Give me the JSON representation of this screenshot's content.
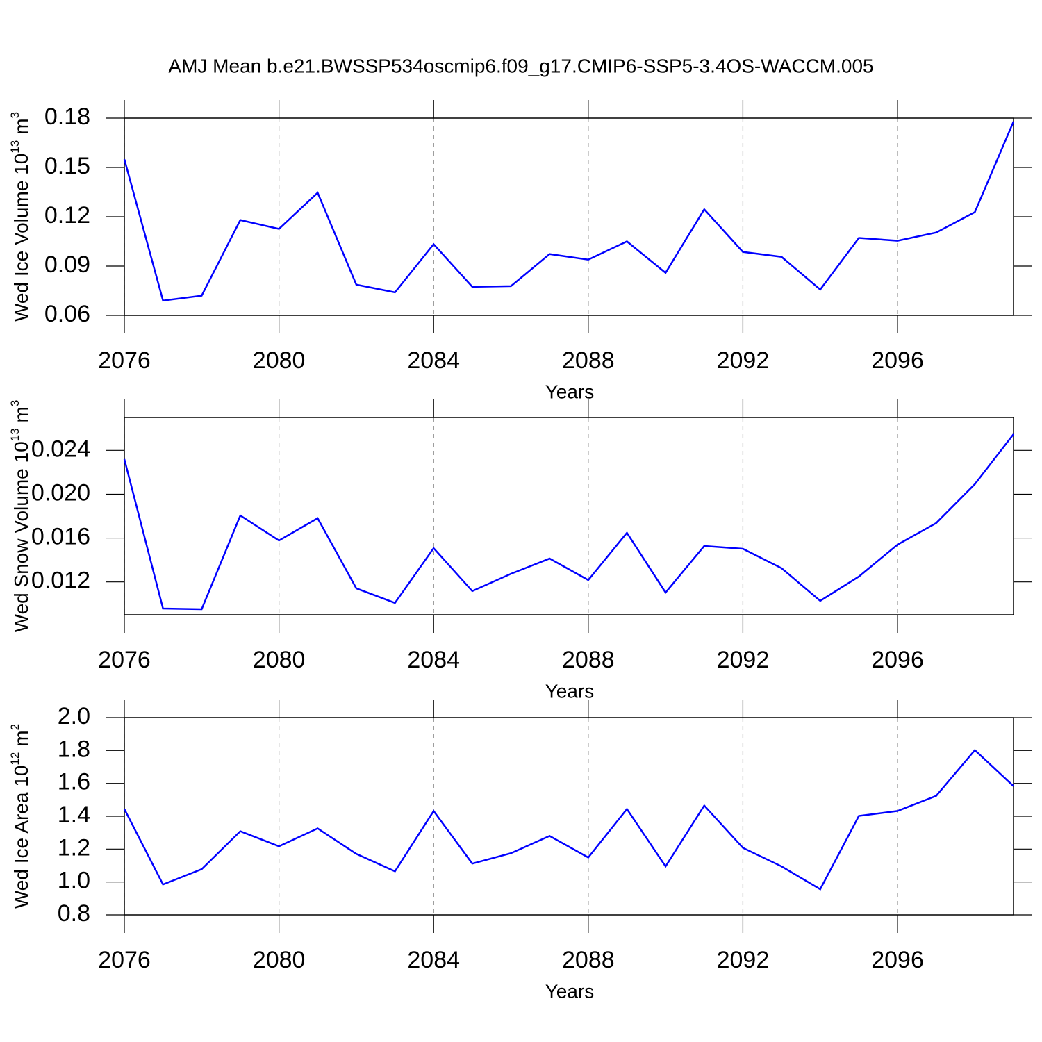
{
  "title": "AMJ Mean b.e21.BWSSP534oscmip6.f09_g17.CMIP6-SSP5-3.4OS-WACCM.005",
  "chart_data": [
    {
      "type": "line",
      "xlabel": "Years",
      "ylabel": [
        "Wed Ice Volume 10",
        "13",
        "m",
        "3"
      ],
      "x": [
        2076,
        2077,
        2078,
        2079,
        2080,
        2081,
        2082,
        2083,
        2084,
        2085,
        2086,
        2087,
        2088,
        2089,
        2090,
        2091,
        2092,
        2093,
        2094,
        2095,
        2096,
        2097,
        2098,
        2099
      ],
      "series": [
        {
          "color": "#0000ff",
          "values": [
            0.155,
            0.069,
            0.072,
            0.118,
            0.1126,
            0.1346,
            0.0787,
            0.074,
            0.1033,
            0.0774,
            0.0778,
            0.0973,
            0.0939,
            0.105,
            0.0859,
            0.1245,
            0.0986,
            0.0956,
            0.0757,
            0.1071,
            0.1054,
            0.1104,
            0.1228,
            0.1779
          ]
        }
      ],
      "xlim": [
        2076,
        2099
      ],
      "xticks": [
        2076,
        2080,
        2084,
        2088,
        2092,
        2096
      ],
      "ylim": [
        0.06,
        0.18
      ],
      "yticks": [
        0.06,
        0.09,
        0.12,
        0.15,
        0.18
      ],
      "grid": true
    },
    {
      "type": "line",
      "xlabel": "Years",
      "ylabel": [
        "Wed Snow Volume 10",
        "13",
        "m",
        "3"
      ],
      "x": [
        2076,
        2077,
        2078,
        2079,
        2080,
        2081,
        2082,
        2083,
        2084,
        2085,
        2086,
        2087,
        2088,
        2089,
        2090,
        2091,
        2092,
        2093,
        2094,
        2095,
        2096,
        2097,
        2098,
        2099
      ],
      "series": [
        {
          "color": "#0000ff",
          "values": [
            0.0232,
            0.00957,
            0.00951,
            0.01806,
            0.01578,
            0.01781,
            0.01141,
            0.01008,
            0.01508,
            0.01116,
            0.01274,
            0.01413,
            0.01217,
            0.01648,
            0.01103,
            0.01528,
            0.01502,
            0.01325,
            0.01027,
            0.01249,
            0.0154,
            0.01737,
            0.02092,
            0.02548
          ]
        }
      ],
      "xlim": [
        2076,
        2099
      ],
      "xticks": [
        2076,
        2080,
        2084,
        2088,
        2092,
        2096
      ],
      "ylim": [
        0.009,
        0.027
      ],
      "yticks": [
        0.012,
        0.016,
        {
          "value": 0.02,
          "label": "0.020"
        },
        0.024
      ],
      "grid": true
    },
    {
      "type": "line",
      "xlabel": "Years",
      "ylabel": [
        "Wed Ice Area 10",
        "12",
        "m",
        "2"
      ],
      "x": [
        2076,
        2077,
        2078,
        2079,
        2080,
        2081,
        2082,
        2083,
        2084,
        2085,
        2086,
        2087,
        2088,
        2089,
        2090,
        2091,
        2092,
        2093,
        2094,
        2095,
        2096,
        2097,
        2098,
        2099
      ],
      "series": [
        {
          "color": "#0000ff",
          "values": [
            1.444,
            0.985,
            1.078,
            1.309,
            1.217,
            1.326,
            1.171,
            1.065,
            1.432,
            1.112,
            1.175,
            1.28,
            1.149,
            1.444,
            1.095,
            1.465,
            1.208,
            1.095,
            0.956,
            1.402,
            1.432,
            1.524,
            1.802,
            1.583
          ]
        }
      ],
      "xlim": [
        2076,
        2099
      ],
      "xticks": [
        2076,
        2080,
        2084,
        2088,
        2092,
        2096
      ],
      "ylim": [
        0.8,
        2.0
      ],
      "yticks": [
        0.8,
        {
          "value": 1.0,
          "label": "1.0"
        },
        1.2,
        1.4,
        1.6,
        1.8,
        {
          "value": 2.0,
          "label": "2.0"
        }
      ],
      "grid": true
    }
  ]
}
